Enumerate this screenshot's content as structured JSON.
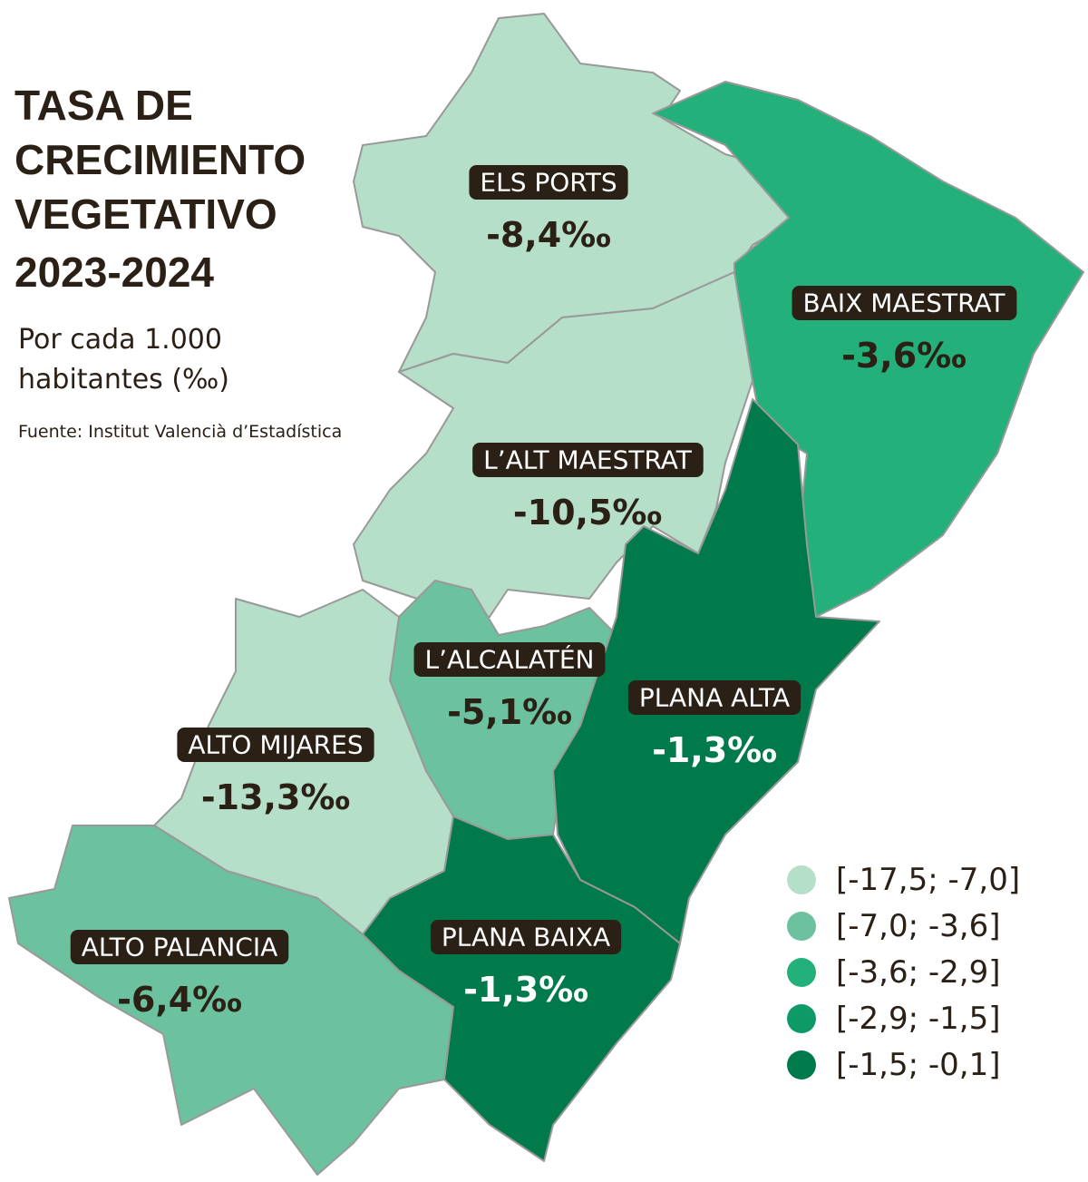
{
  "title": [
    "TASA DE",
    "CRECIMIENTO",
    "VEGETATIVO",
    "2023-2024"
  ],
  "subtitle": [
    "Por cada 1.000",
    "habitantes (‰)"
  ],
  "source": "Fuente: Institut Valencià d’Estadística",
  "regions": [
    {
      "name": "ELS PORTS",
      "value": "-8,4‰",
      "color": "#b5dfc9",
      "value_color": "#2a2016"
    },
    {
      "name": "BAIX MAESTRAT",
      "value": "-3,6‰",
      "color": "#24b07a",
      "value_color": "#2a2016"
    },
    {
      "name": "L’ALT MAESTRAT",
      "value": "-10,5‰",
      "color": "#b5dfc9",
      "value_color": "#2a2016"
    },
    {
      "name": "L’ALCALATÉN",
      "value": "-5,1‰",
      "color": "#6cc19e",
      "value_color": "#2a2016"
    },
    {
      "name": "PLANA ALTA",
      "value": "-1,3‰",
      "color": "#00794b",
      "value_color": "#ffffff"
    },
    {
      "name": "ALTO MIJARES",
      "value": "-13,3‰",
      "color": "#b5dfc9",
      "value_color": "#2a2016"
    },
    {
      "name": "ALTO PALANCIA",
      "value": "-6,4‰",
      "color": "#6cc19e",
      "value_color": "#2a2016"
    },
    {
      "name": "PLANA BAIXA",
      "value": "-1,3‰",
      "color": "#00794b",
      "value_color": "#ffffff"
    }
  ],
  "legend": [
    {
      "label": "[-17,5; -7,0]",
      "color": "#b5dfc9"
    },
    {
      "label": "[-7,0; -3,6]",
      "color": "#6cc19e"
    },
    {
      "label": "[-3,6; -2,9]",
      "color": "#24b07a"
    },
    {
      "label": "[-2,9; -1,5]",
      "color": "#0e9a66"
    },
    {
      "label": "[-1,5; -0,1]",
      "color": "#00794b"
    }
  ]
}
